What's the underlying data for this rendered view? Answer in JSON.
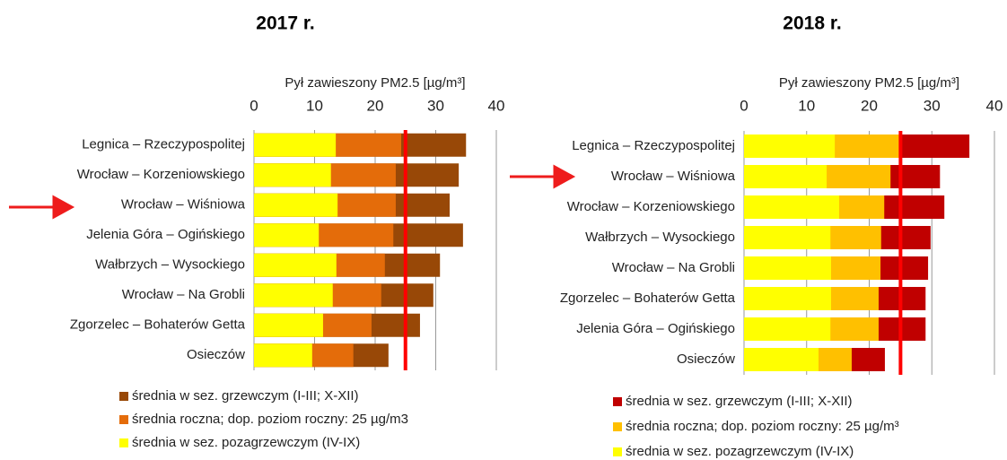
{
  "chart_data": [
    {
      "type": "bar",
      "orientation": "horizontal",
      "title": "2017 r.",
      "xlabel": "Pył zawieszony PM2.5 [µg/m³]",
      "categories": [
        "Legnica – Rzeczypospolitej",
        "Wrocław – Korzeniowskiego",
        "Wrocław – Wiśniowa",
        "Jelenia Góra – Ogińskiego",
        "Wałbrzych – Wysockiego",
        "Wrocław – Na Grobli",
        "Zgorzelec – Bohaterów Getta",
        "Osieczów"
      ],
      "series": [
        {
          "name": "średnia w sez. grzewczym (I-III; X-XII)",
          "color": "#984807",
          "values": [
            35.0,
            33.8,
            32.3,
            34.5,
            30.7,
            29.6,
            27.4,
            22.2
          ]
        },
        {
          "name": "średnia roczna; dop. poziom roczny: 25 µg/m3",
          "color": "#e46c0a",
          "values": [
            24.3,
            23.4,
            23.4,
            23.0,
            21.6,
            21.0,
            19.4,
            16.4
          ]
        },
        {
          "name": "średnia w sez. pozagrzewczym (IV-IX)",
          "color": "#ffff00",
          "values": [
            13.5,
            12.7,
            13.8,
            10.7,
            13.6,
            13.0,
            11.4,
            9.6
          ]
        }
      ],
      "xlim": [
        0,
        40
      ],
      "xticks": [
        0,
        10,
        20,
        30,
        40
      ],
      "grid": true,
      "limit": 25,
      "limit_color": "#ff0000"
    },
    {
      "type": "bar",
      "orientation": "horizontal",
      "title": "2018 r.",
      "xlabel": "Pył zawieszony PM2.5 [µg/m³]",
      "categories": [
        "Legnica – Rzeczypospolitej",
        "Wrocław – Wiśniowa",
        "Wrocław – Korzeniowskiego",
        "Wałbrzych – Wysockiego",
        "Wrocław – Na Grobli",
        "Zgorzelec – Bohaterów Getta",
        "Jelenia Góra – Ogińskiego",
        "Osieczów"
      ],
      "series": [
        {
          "name": "średnia w sez. grzewczym (I-III; X-XII)",
          "color": "#c00000",
          "values": [
            36.0,
            31.3,
            32.0,
            29.8,
            29.4,
            29.0,
            29.0,
            22.5
          ]
        },
        {
          "name": "średnia roczna; dop. poziom roczny: 25 µg/m³",
          "color": "#ffc000",
          "values": [
            24.8,
            23.4,
            22.4,
            21.9,
            21.8,
            21.5,
            21.5,
            17.2
          ]
        },
        {
          "name": "średnia w sez. pozagrzewczym (IV-IX)",
          "color": "#ffff00",
          "values": [
            14.5,
            13.2,
            15.2,
            13.8,
            13.9,
            13.9,
            13.8,
            11.9
          ]
        }
      ],
      "xlim": [
        0,
        40
      ],
      "xticks": [
        0,
        10,
        20,
        30,
        40
      ],
      "grid": true,
      "limit": 25,
      "limit_color": "#ff0000"
    }
  ]
}
